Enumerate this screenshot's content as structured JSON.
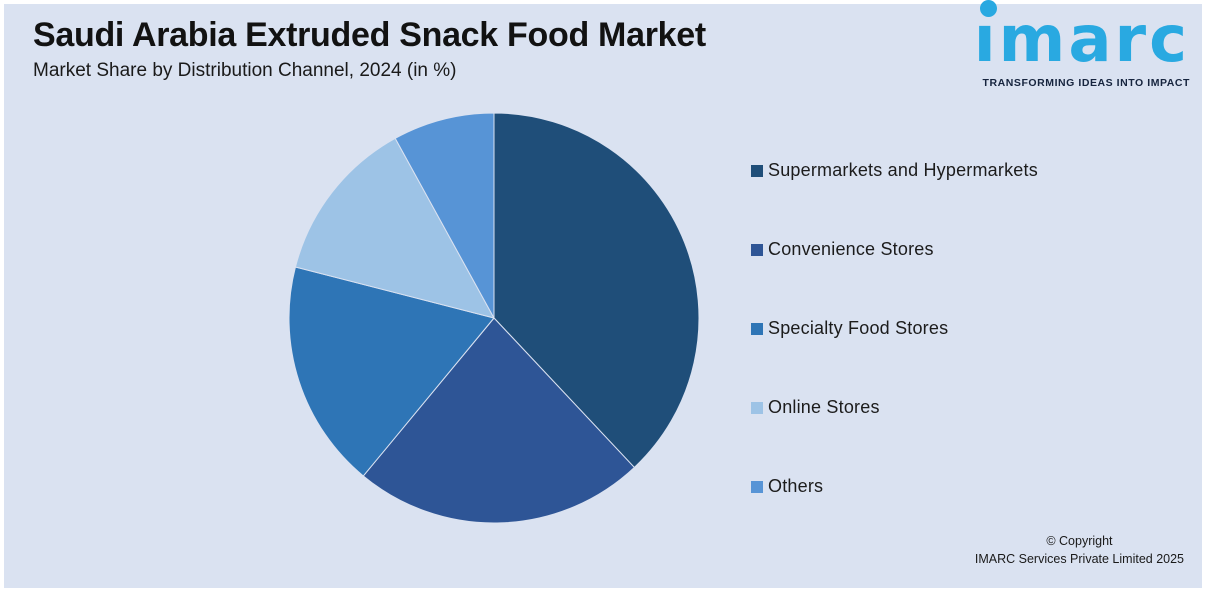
{
  "chart_data": {
    "type": "pie",
    "title": "Saudi Arabia Extruded Snack Food Market",
    "subtitle": "Market Share by Distribution Channel, 2024 (in %)",
    "unit": "%",
    "year": "2024",
    "categories": [
      "Supermarkets and Hypermarkets",
      "Convenience Stores",
      "Specialty Food Stores",
      "Online Stores",
      "Others"
    ],
    "values": [
      38,
      23,
      18,
      13,
      8
    ],
    "colors": [
      "#1f4e79",
      "#2e5596",
      "#2e75b6",
      "#9dc3e6",
      "#5794d6"
    ],
    "values_note": "no data labels shown on chart; shares estimated from slice angles",
    "start_angle": "12 o'clock, clockwise",
    "legend_position": "right",
    "data_labels": "none"
  },
  "logo": {
    "wordmark": "imarc",
    "tagline": "TRANSFORMING IDEAS INTO IMPACT",
    "brand_color": "#29a9e1",
    "tagline_color": "#16243e"
  },
  "footer": {
    "copyright_line1": "© Copyright",
    "copyright_line2": "IMARC Services Private Limited 2025"
  },
  "colors": {
    "background": "#dae2f1",
    "frame": "#ffffff",
    "title_text": "#121212",
    "slice_separator": "#dae2f1"
  }
}
